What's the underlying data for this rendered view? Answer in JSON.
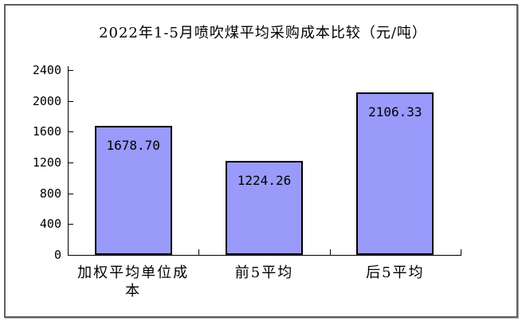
{
  "chart_data": {
    "type": "bar",
    "title": "2022年1-5月喷吹煤平均采购成本比较（元/吨）",
    "categories": [
      "加权平均单位成本",
      "前5平均",
      "后5平均"
    ],
    "values": [
      1678.7,
      1224.26,
      2106.33
    ],
    "value_labels": [
      "1678.70",
      "1224.26",
      "2106.33"
    ],
    "xlabel": "",
    "ylabel": "",
    "ylim": [
      0,
      2400
    ],
    "ytick_interval": 400,
    "yticks": [
      0,
      400,
      800,
      1200,
      1600,
      2000,
      2400
    ],
    "grid": "off",
    "legend": "none",
    "colors": {
      "bar_fill": "#9a9afb",
      "bar_border": "#000000",
      "axis": "#000000",
      "frame_border": "#5f5f5f",
      "background": "#ffffff",
      "text": "#000000"
    }
  }
}
